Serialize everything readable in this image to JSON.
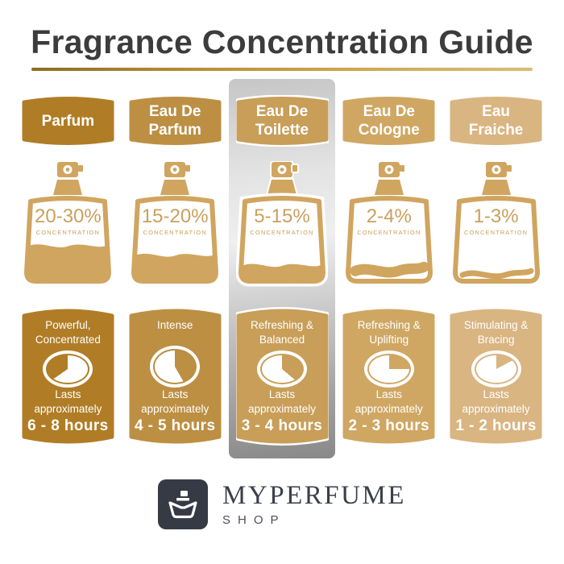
{
  "title": "Fragrance Concentration Guide",
  "strings": {
    "concentration_label": "CONCENTRATION",
    "lasts_label": "Lasts approximately"
  },
  "footer": {
    "brand": "MYPERFUME",
    "sub_brand": "SHOP"
  },
  "colors": {
    "title_text": "#3c3c3c",
    "underline_gold_start": "#8f6d1d",
    "underline_gold_end": "#d9bc78",
    "bottle": "#d0a55f",
    "concentration_text": "#c9a05c",
    "highlight_panel_silver": "#bdbdbd",
    "logo_background": "#353a45",
    "logo_text": "#3a3f4a"
  },
  "columns": [
    {
      "name_line1": "Parfum",
      "name_line2": "",
      "color": "#b07d26",
      "concentration": "20-30%",
      "fill_percent": 45,
      "fill_style": "full",
      "band_thickness": 0,
      "highlighted": false,
      "desc_line1": "Powerful,",
      "desc_line2": "Concentrated",
      "duration": "6 - 8 hours",
      "clock_gold_start_deg": 235,
      "clock_gold_end_deg": 360
    },
    {
      "name_line1": "Eau De",
      "name_line2": "Parfum",
      "color": "#bc8f43",
      "concentration": "15-20%",
      "fill_percent": 33,
      "fill_style": "full",
      "band_thickness": 0,
      "highlighted": false,
      "desc_line1": "Intense",
      "desc_line2": "",
      "duration": "4 - 5 hours",
      "clock_gold_start_deg": 0,
      "clock_gold_end_deg": 150
    },
    {
      "name_line1": "Eau De",
      "name_line2": "Toilette",
      "color": "#c89e58",
      "concentration": "5-15%",
      "fill_percent": 20,
      "fill_style": "full",
      "band_thickness": 0,
      "highlighted": true,
      "desc_line1": "Refreshing &",
      "desc_line2": "Balanced",
      "duration": "3 - 4 hours",
      "clock_gold_start_deg": 0,
      "clock_gold_end_deg": 130
    },
    {
      "name_line1": "Eau De",
      "name_line2": "Cologne",
      "color": "#cfa763",
      "concentration": "2-4%",
      "fill_percent": 13,
      "fill_style": "band",
      "band_thickness": 13,
      "highlighted": false,
      "desc_line1": "Refreshing &",
      "desc_line2": "Uplifting",
      "duration": "2 - 3 hours",
      "clock_gold_start_deg": 0,
      "clock_gold_end_deg": 90
    },
    {
      "name_line1": "Eau",
      "name_line2": "Fraiche",
      "color": "#d9b582",
      "concentration": "1-3%",
      "fill_percent": 8,
      "fill_style": "band",
      "band_thickness": 7,
      "highlighted": false,
      "desc_line1": "Stimulating &",
      "desc_line2": "Bracing",
      "duration": "1 - 2 hours",
      "clock_gold_start_deg": 0,
      "clock_gold_end_deg": 62
    }
  ]
}
